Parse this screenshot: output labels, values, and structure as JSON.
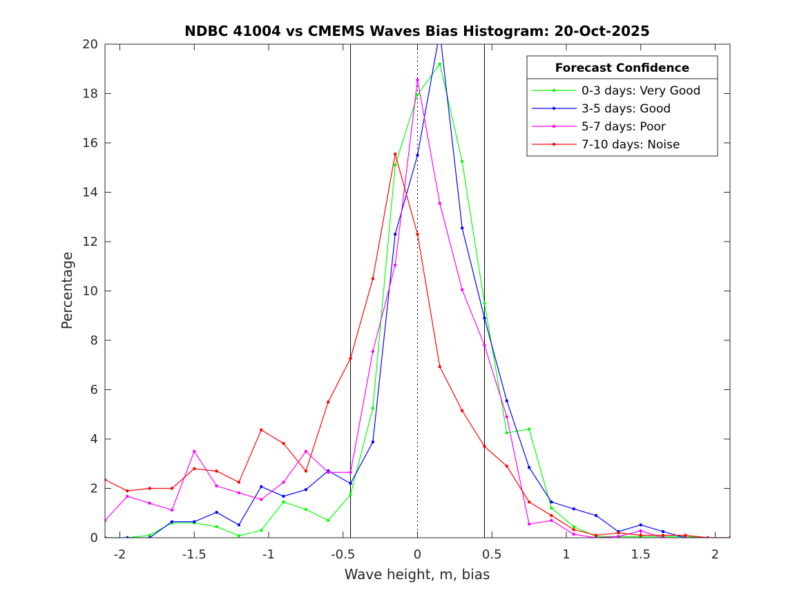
{
  "chart_data": {
    "type": "line",
    "title": "NDBC 41004 vs CMEMS Waves Bias Histogram: 20-Oct-2025",
    "xlabel": "Wave height, m, bias",
    "ylabel": "Percentage",
    "xlim": [
      -2.1,
      2.1
    ],
    "ylim": [
      0,
      20
    ],
    "xticks": [
      -2,
      -1.5,
      -1,
      -0.5,
      0,
      0.5,
      1,
      1.5,
      2
    ],
    "xtick_labels": [
      "-2",
      "-1.5",
      "-1",
      "-0.5",
      "0",
      "0.5",
      "1",
      "1.5",
      "2"
    ],
    "yticks": [
      0,
      2,
      4,
      6,
      8,
      10,
      12,
      14,
      16,
      18,
      20
    ],
    "ytick_labels": [
      "0",
      "2",
      "4",
      "6",
      "8",
      "10",
      "12",
      "14",
      "16",
      "18",
      "20"
    ],
    "vlines_solid": [
      -0.45,
      0.45
    ],
    "vline_dotted": 0,
    "legend": {
      "title": "Forecast Confidence",
      "position": "top-right"
    },
    "x": [
      -2.1,
      -1.95,
      -1.8,
      -1.65,
      -1.5,
      -1.35,
      -1.2,
      -1.05,
      -0.9,
      -0.75,
      -0.6,
      -0.45,
      -0.3,
      -0.15,
      0,
      0.15,
      0.3,
      0.45,
      0.6,
      0.75,
      0.9,
      1.05,
      1.2,
      1.35,
      1.5,
      1.65,
      1.8,
      1.95,
      2.1
    ],
    "series": [
      {
        "name": "0-3 days: Very Good",
        "color": "#00ff00",
        "values": [
          0,
          0,
          0.1,
          0.6,
          0.6,
          0.45,
          0.08,
          0.3,
          1.45,
          1.15,
          0.7,
          1.75,
          5.25,
          15.1,
          17.95,
          19.2,
          15.25,
          9.5,
          4.25,
          4.4,
          1.2,
          0.45,
          0.05,
          0.05,
          0.05,
          0.05,
          0.05,
          0,
          0
        ]
      },
      {
        "name": "3-5 days: Good",
        "color": "#0000ff",
        "values": [
          0,
          0,
          0,
          0.65,
          0.65,
          1.03,
          0.52,
          2.07,
          1.68,
          1.95,
          2.71,
          2.2,
          3.88,
          12.3,
          15.5,
          20.5,
          12.55,
          8.9,
          5.55,
          2.85,
          1.45,
          1.17,
          0.9,
          0.25,
          0.52,
          0.25,
          0,
          0,
          0
        ]
      },
      {
        "name": "5-7 days: Poor",
        "color": "#ff00ff",
        "values": [
          0.7,
          1.68,
          1.4,
          1.12,
          3.5,
          2.1,
          1.82,
          1.55,
          2.25,
          3.5,
          2.65,
          2.65,
          7.55,
          11.05,
          18.55,
          13.55,
          10.05,
          7.8,
          4.9,
          0.55,
          0.7,
          0.14,
          0,
          0.05,
          0.28,
          0,
          0,
          0,
          0
        ]
      },
      {
        "name": "7-10 days: Noise",
        "color": "#ff0000",
        "values": [
          2.35,
          1.9,
          2.0,
          2.0,
          2.8,
          2.7,
          2.25,
          4.37,
          3.82,
          2.7,
          5.5,
          7.27,
          10.5,
          15.55,
          12.3,
          6.93,
          5.15,
          3.7,
          2.9,
          1.45,
          0.9,
          0.33,
          0.1,
          0.2,
          0.1,
          0.1,
          0.1,
          0,
          0
        ]
      }
    ]
  }
}
